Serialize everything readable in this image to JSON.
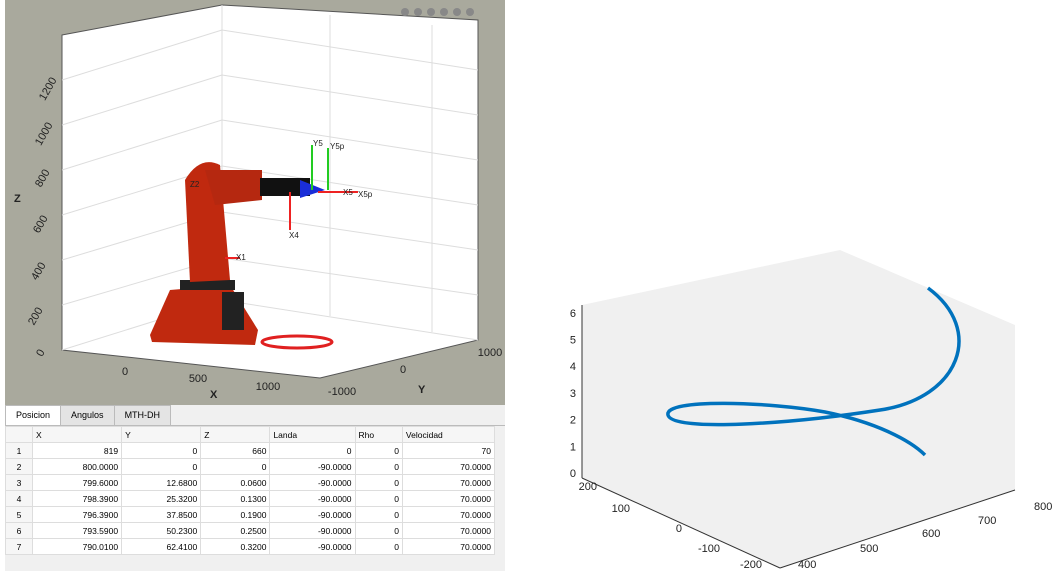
{
  "robot_plot": {
    "z_ticks": [
      "0",
      "200",
      "400",
      "600",
      "800",
      "1000",
      "1200"
    ],
    "x_ticks": [
      "0",
      "500",
      "1000"
    ],
    "y_ticks": [
      "-1000",
      "0",
      "1000"
    ],
    "x_label": "X",
    "y_label": "Y",
    "z_label": "Z",
    "frame_labels": [
      "Y5",
      "Y5p",
      "X5",
      "X5p",
      "X4",
      "X1",
      "Z2"
    ]
  },
  "tabs": [
    "Posicion",
    "Angulos",
    "MTH-DH"
  ],
  "table": {
    "columns": [
      "X",
      "Y",
      "Z",
      "Landa",
      "Rho",
      "Velocidad"
    ],
    "row_numbers": [
      "1",
      "2",
      "3",
      "4",
      "5",
      "6",
      "7"
    ],
    "rows": [
      [
        "819",
        "0",
        "660",
        "0",
        "0",
        "70"
      ],
      [
        "800.0000",
        "0",
        "0",
        "-90.0000",
        "0",
        "70.0000"
      ],
      [
        "799.6000",
        "12.6800",
        "0.0600",
        "-90.0000",
        "0",
        "70.0000"
      ],
      [
        "798.3900",
        "25.3200",
        "0.1300",
        "-90.0000",
        "0",
        "70.0000"
      ],
      [
        "796.3900",
        "37.8500",
        "0.1900",
        "-90.0000",
        "0",
        "70.0000"
      ],
      [
        "793.5900",
        "50.2300",
        "0.2500",
        "-90.0000",
        "0",
        "70.0000"
      ],
      [
        "790.0100",
        "62.4100",
        "0.3200",
        "-90.0000",
        "0",
        "70.0000"
      ]
    ]
  },
  "trajectory_plot": {
    "z_ticks": [
      "0",
      "1",
      "2",
      "3",
      "4",
      "5",
      "6"
    ],
    "y_ticks": [
      "200",
      "100",
      "0",
      "-100",
      "-200"
    ],
    "x_ticks": [
      "400",
      "500",
      "600",
      "700",
      "800"
    ]
  }
}
